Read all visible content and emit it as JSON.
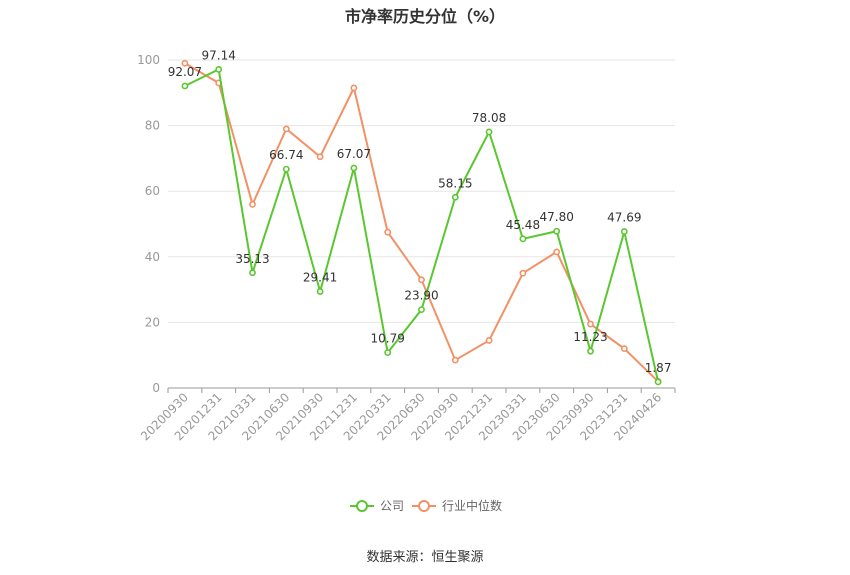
{
  "chart_data": {
    "type": "line",
    "title": "市净率历史分位（%）",
    "categories": [
      "20200930",
      "20201231",
      "20210331",
      "20210630",
      "20210930",
      "20211231",
      "20220331",
      "20220630",
      "20220930",
      "20221231",
      "20230331",
      "20230630",
      "20230930",
      "20231231",
      "20240426"
    ],
    "ylim": [
      0,
      100
    ],
    "yticks": [
      0,
      20,
      40,
      60,
      80,
      100
    ],
    "grid": true,
    "legend_position": "bottom-center",
    "series": [
      {
        "name": "公司",
        "color": "#5ac731",
        "values": [
          92.07,
          97.14,
          35.13,
          66.74,
          29.41,
          67.07,
          10.79,
          23.9,
          58.15,
          78.08,
          45.48,
          47.8,
          11.23,
          47.69,
          1.87
        ],
        "labels": [
          "92.07",
          "97.14",
          "35.13",
          "66.74",
          "29.41",
          "67.07",
          "10.79",
          "23.90",
          "58.15",
          "78.08",
          "45.48",
          "47.80",
          "11.23",
          "47.69",
          "1.87"
        ]
      },
      {
        "name": "行业中位数",
        "color": "#f39166",
        "values": [
          99.0,
          93.0,
          56.0,
          79.0,
          70.5,
          91.5,
          47.5,
          33.0,
          8.5,
          14.5,
          35.0,
          41.5,
          19.5,
          12.0,
          2.0
        ]
      }
    ],
    "source": "数据来源：恒生聚源"
  }
}
